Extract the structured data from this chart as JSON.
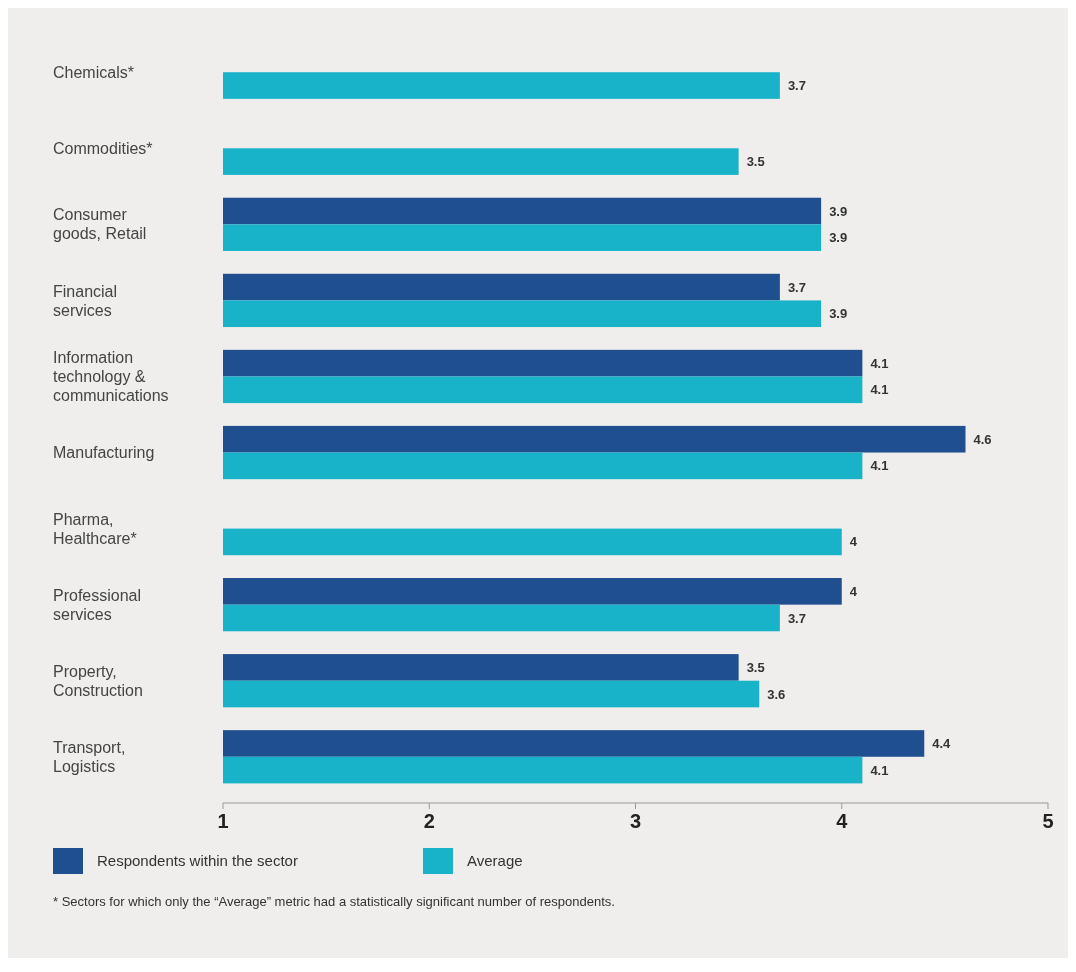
{
  "chart_data": {
    "type": "bar",
    "orientation": "horizontal",
    "categories": [
      "Chemicals*",
      "Commodities*",
      "Consumer goods, Retail",
      "Financial services",
      "Information technology & communications",
      "Manufacturing",
      "Pharma, Healthcare*",
      "Professional services",
      "Property, Construction",
      "Transport, Logistics"
    ],
    "series": [
      {
        "name": "Respondents within the sector",
        "color": "#1f4f8f",
        "values": [
          null,
          null,
          3.9,
          3.7,
          4.1,
          4.6,
          null,
          4,
          3.5,
          4.4
        ]
      },
      {
        "name": "Average",
        "color": "#19b3c9",
        "values": [
          3.7,
          3.5,
          3.9,
          3.9,
          4.1,
          4.1,
          4,
          3.7,
          3.6,
          4.1
        ]
      }
    ],
    "xlim": [
      1,
      5
    ],
    "xticks": [
      1,
      2,
      3,
      4,
      5
    ],
    "data_labels": true,
    "legend": "bottom left",
    "grid": false,
    "annotations": [
      "* Sectors for which only the “Average” metric had a statistically significant number of respondents."
    ]
  }
}
